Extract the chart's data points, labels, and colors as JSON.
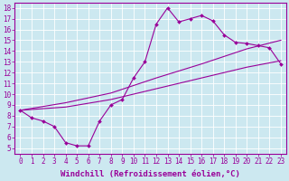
{
  "xlabel": "Windchill (Refroidissement éolien,°C)",
  "xlim": [
    -0.5,
    23.5
  ],
  "ylim": [
    4.5,
    18.5
  ],
  "xticks": [
    0,
    1,
    2,
    3,
    4,
    5,
    6,
    7,
    8,
    9,
    10,
    11,
    12,
    13,
    14,
    15,
    16,
    17,
    18,
    19,
    20,
    21,
    22,
    23
  ],
  "yticks": [
    5,
    6,
    7,
    8,
    9,
    10,
    11,
    12,
    13,
    14,
    15,
    16,
    17,
    18
  ],
  "background_color": "#cce8f0",
  "line_color": "#990099",
  "grid_color": "#ffffff",
  "curve_x": [
    0,
    1,
    2,
    3,
    4,
    5,
    6,
    7,
    8,
    9,
    10,
    11,
    12,
    13,
    14,
    15,
    16,
    17,
    18,
    19,
    20,
    21,
    22,
    23
  ],
  "curve_y": [
    8.5,
    7.8,
    7.5,
    7.0,
    5.5,
    5.2,
    5.2,
    7.5,
    9.0,
    9.5,
    11.5,
    13.0,
    16.5,
    18.0,
    16.7,
    17.0,
    17.3,
    16.8,
    15.5,
    14.8,
    14.7,
    14.5,
    14.3,
    12.8
  ],
  "trend1_x": [
    0,
    4,
    8,
    12,
    16,
    20,
    23
  ],
  "trend1_y": [
    8.5,
    8.8,
    9.5,
    10.5,
    11.5,
    12.5,
    13.1
  ],
  "trend2_x": [
    0,
    4,
    8,
    12,
    16,
    20,
    23
  ],
  "trend2_y": [
    8.5,
    9.2,
    10.1,
    11.5,
    12.8,
    14.2,
    15.0
  ],
  "font_size_ticks": 5.5,
  "font_size_xlabel": 6.5,
  "marker": "D",
  "marker_size": 2.0,
  "linewidth": 0.8
}
